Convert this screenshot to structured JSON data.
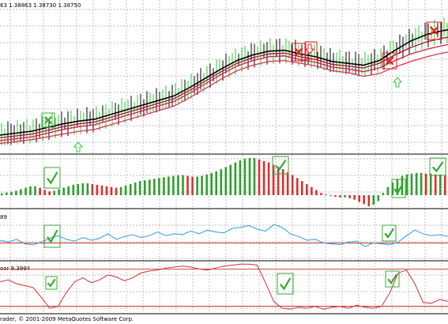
{
  "header": {
    "price_info": "63  1.38863  1.38730  1.38750"
  },
  "panels": {
    "rsi_label": "89",
    "stoch_label": "oor 9.3994"
  },
  "footer": {
    "copyright": "rader, © 2001-2009 MetaQuotes Software Corp."
  },
  "colors": {
    "grid": "#a8a8a8",
    "separator": "#000000",
    "bull_candle": "#33cc33",
    "bear_candle": "#000000",
    "ma_black": "#000000",
    "ma_red_1": "#aa1133",
    "ma_red_2": "#cc2244",
    "ma_red_3": "#dd3355",
    "hist_green": "#2e9e2e",
    "hist_red": "#d93030",
    "rsi_line": "#3399dd",
    "stoch_line": "#cc3333",
    "level_line": "#cc3333",
    "signal_green": "#33aa33",
    "signal_red": "#dd2222"
  },
  "icons": [
    "check-icon",
    "x-icon",
    "up-arrow-icon",
    "down-arrow-icon"
  ],
  "chart_data": [
    {
      "type": "line",
      "panel": "price",
      "x": [
        0,
        20,
        40,
        60,
        80,
        100,
        120,
        140,
        160,
        180,
        200,
        220,
        240,
        260,
        280,
        300,
        320,
        340,
        360,
        380,
        400,
        420,
        440,
        460,
        480,
        500,
        520,
        540,
        560,
        567
      ],
      "series": [
        {
          "values": [
            1.2,
            1.4,
            1.6,
            2.0,
            2.4,
            2.7,
            2.9,
            3.4,
            3.9,
            4.4,
            4.9,
            5.4,
            6.3,
            7.3,
            8.3,
            9.2,
            9.8,
            10.2,
            10.3,
            9.9,
            9.6,
            9.1,
            8.9,
            8.7,
            9.2,
            10.3,
            11.3,
            12.0,
            12.4,
            12.5
          ]
        },
        {
          "values": [
            0.9,
            1.1,
            1.3,
            1.7,
            2.1,
            2.4,
            2.6,
            3.1,
            3.6,
            4.1,
            4.6,
            5.1,
            6.0,
            7.0,
            8.0,
            8.9,
            9.5,
            9.9,
            10.0,
            9.6,
            9.3,
            8.8,
            8.6,
            8.4,
            8.9,
            9.8,
            10.6,
            11.2,
            11.6,
            11.7
          ]
        },
        {
          "values": [
            0.6,
            0.8,
            1.0,
            1.4,
            1.8,
            2.1,
            2.3,
            2.8,
            3.3,
            3.8,
            4.3,
            4.8,
            5.7,
            6.7,
            7.7,
            8.6,
            9.2,
            9.6,
            9.7,
            9.3,
            9.0,
            8.5,
            8.3,
            8.0,
            8.4,
            9.2,
            9.9,
            10.4,
            10.8,
            10.9
          ]
        },
        {
          "values": [
            0.3,
            0.5,
            0.7,
            1.0,
            1.3,
            1.6,
            1.8,
            2.3,
            2.8,
            3.3,
            3.8,
            4.3,
            5.2,
            6.2,
            7.2,
            8.1,
            8.7,
            9.1,
            9.2,
            8.9,
            8.6,
            8.1,
            7.9,
            7.5,
            7.8,
            8.5,
            9.1,
            9.6,
            10.0,
            10.1
          ]
        }
      ]
    },
    {
      "type": "bar",
      "panel": "histogram",
      "values": [
        0.5,
        0.7,
        0.9,
        1.2,
        1.6,
        2.0,
        2.4,
        2.4,
        2.0,
        1.4,
        1.0,
        1.2,
        1.6,
        2.0,
        2.4,
        2.8,
        3.0,
        3.2,
        3.2,
        3.0,
        2.8,
        2.6,
        2.4,
        2.2,
        2.0,
        2.2,
        2.6,
        3.0,
        3.4,
        3.8,
        4.0,
        4.2,
        4.4,
        4.6,
        4.8,
        5.0,
        5.2,
        5.4,
        5.4,
        5.2,
        5.0,
        5.0,
        5.2,
        5.6,
        6.0,
        6.4,
        7.0,
        7.6,
        8.2,
        8.8,
        9.4,
        9.8,
        10.0,
        10.0,
        9.6,
        9.2,
        8.8,
        8.2,
        7.6,
        7.0,
        6.2,
        5.4,
        4.6,
        3.8,
        3.0,
        2.2,
        1.4,
        0.6,
        0.2,
        -0.2,
        -0.4,
        -0.6,
        -0.6,
        -0.8,
        -1.2,
        -1.8,
        -2.4,
        -3.0,
        -2.6,
        -1.6,
        0.6,
        2.2,
        3.4,
        4.4,
        5.2,
        5.6,
        5.8,
        6.0,
        6.0,
        5.8,
        5.8,
        5.6,
        5.6,
        5.4
      ]
    },
    {
      "type": "line",
      "panel": "rsi",
      "level": 32,
      "values": [
        38,
        34,
        40,
        30,
        28,
        34,
        42,
        48,
        40,
        36,
        44,
        38,
        42,
        52,
        40,
        46,
        50,
        44,
        48,
        56,
        48,
        52,
        50,
        58,
        52,
        60,
        56,
        54,
        64,
        66,
        70,
        62,
        58,
        72,
        66,
        52,
        46,
        38,
        40,
        32,
        30,
        28,
        34,
        36,
        24,
        32,
        30,
        28,
        34,
        48,
        60,
        52,
        48,
        50,
        46
      ]
    },
    {
      "type": "line",
      "panel": "stochastic",
      "level": 12,
      "values": [
        62,
        66,
        58,
        54,
        50,
        30,
        8,
        12,
        40,
        62,
        70,
        60,
        66,
        76,
        72,
        64,
        70,
        80,
        84,
        86,
        90,
        92,
        94,
        92,
        88,
        86,
        90,
        94,
        96,
        98,
        98,
        96,
        60,
        22,
        8,
        6,
        10,
        8,
        12,
        6,
        10,
        12,
        8,
        14,
        10,
        8,
        12,
        40,
        80,
        86,
        58,
        20,
        18,
        26,
        22
      ]
    }
  ]
}
